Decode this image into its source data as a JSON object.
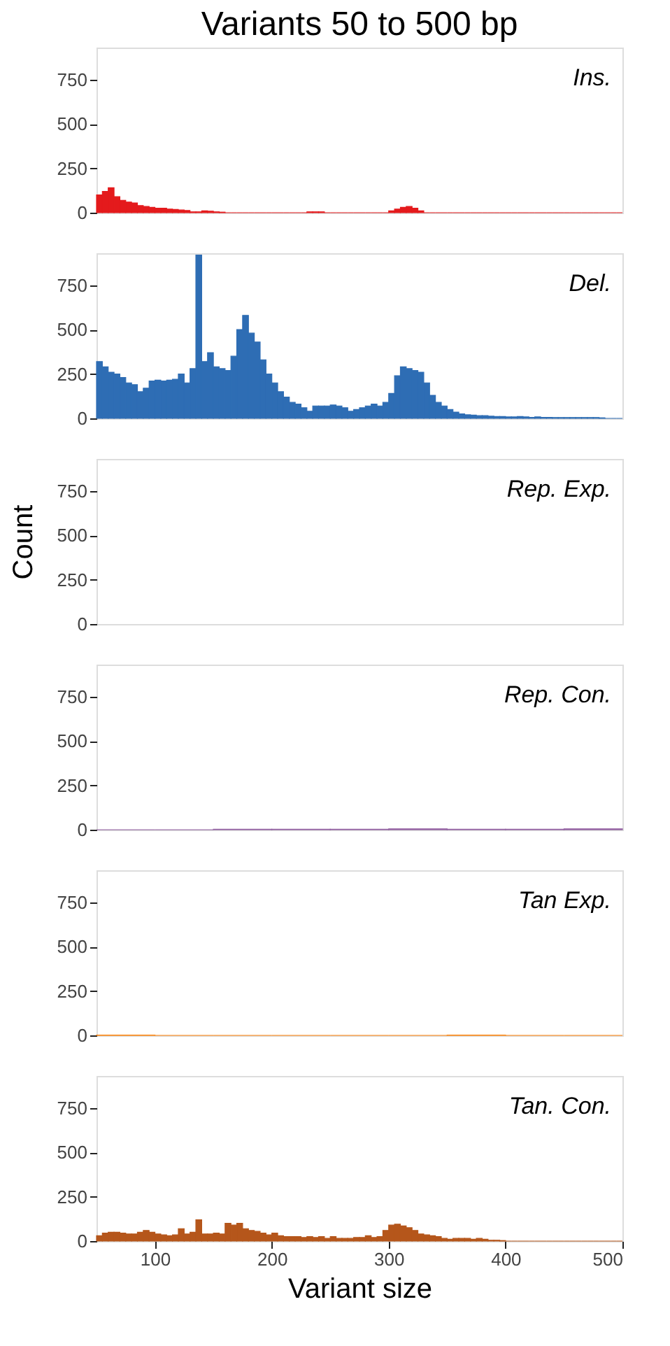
{
  "chart_data": [
    {
      "type": "histogram",
      "title": "Variants 50 to 500 bp",
      "annotations": [
        "Ins."
      ],
      "xlim": [
        50,
        500
      ],
      "ylim": [
        0,
        930
      ],
      "yticks": [
        0,
        250,
        500,
        750
      ],
      "tick_labels": "y",
      "grid": false,
      "color": "#e41a1c",
      "bins": [
        50,
        55,
        60,
        65,
        70,
        75,
        80,
        85,
        90,
        95,
        100,
        105,
        110,
        115,
        120,
        125,
        130,
        135,
        140,
        145,
        150,
        155,
        160,
        165,
        170,
        175,
        180,
        185,
        190,
        195,
        200,
        205,
        210,
        215,
        220,
        225,
        230,
        235,
        240,
        245,
        250,
        255,
        260,
        265,
        270,
        275,
        280,
        285,
        290,
        295,
        300,
        305,
        310,
        315,
        320,
        325,
        330,
        335,
        340,
        345,
        350,
        355,
        360,
        365,
        370,
        375,
        380,
        385,
        390,
        395,
        400,
        405,
        410,
        415,
        420,
        425,
        430,
        435,
        440,
        445,
        450,
        455,
        460,
        465,
        470,
        475,
        480,
        485,
        490,
        495,
        500
      ],
      "values": [
        100,
        120,
        140,
        90,
        70,
        60,
        55,
        40,
        35,
        30,
        25,
        25,
        20,
        18,
        15,
        12,
        5,
        5,
        10,
        8,
        5,
        3,
        0,
        0,
        0,
        0,
        0,
        0,
        0,
        0,
        0,
        0,
        0,
        0,
        0,
        0,
        5,
        5,
        5,
        0,
        0,
        0,
        0,
        0,
        0,
        0,
        0,
        0,
        0,
        0,
        10,
        20,
        30,
        35,
        25,
        10,
        0,
        0,
        0,
        0,
        0,
        0,
        0,
        0,
        0,
        0,
        0,
        0,
        0,
        0,
        0,
        0,
        0,
        0,
        0,
        0,
        0,
        0,
        0,
        0,
        0,
        0,
        0,
        0,
        0,
        0,
        0,
        0,
        0,
        0
      ]
    },
    {
      "type": "histogram",
      "annotations": [
        "Del."
      ],
      "xlim": [
        50,
        500
      ],
      "ylim": [
        0,
        930
      ],
      "yticks": [
        0,
        250,
        500,
        750
      ],
      "tick_labels": "y",
      "grid": false,
      "color": "#2e6db4",
      "bins": [
        50,
        55,
        60,
        65,
        70,
        75,
        80,
        85,
        90,
        95,
        100,
        105,
        110,
        115,
        120,
        125,
        130,
        135,
        140,
        145,
        150,
        155,
        160,
        165,
        170,
        175,
        180,
        185,
        190,
        195,
        200,
        205,
        210,
        215,
        220,
        225,
        230,
        235,
        240,
        245,
        250,
        255,
        260,
        265,
        270,
        275,
        280,
        285,
        290,
        295,
        300,
        305,
        310,
        315,
        320,
        325,
        330,
        335,
        340,
        345,
        350,
        355,
        360,
        365,
        370,
        375,
        380,
        385,
        390,
        395,
        400,
        405,
        410,
        415,
        420,
        425,
        430,
        435,
        440,
        445,
        450,
        455,
        460,
        465,
        470,
        475,
        480,
        485,
        490,
        495,
        500
      ],
      "values": [
        320,
        290,
        260,
        250,
        230,
        200,
        190,
        150,
        170,
        210,
        215,
        210,
        215,
        220,
        250,
        200,
        280,
        920,
        320,
        370,
        290,
        280,
        270,
        350,
        500,
        580,
        480,
        430,
        330,
        250,
        200,
        150,
        120,
        90,
        80,
        60,
        40,
        70,
        70,
        70,
        75,
        70,
        60,
        40,
        50,
        60,
        70,
        80,
        70,
        90,
        140,
        240,
        290,
        280,
        270,
        260,
        200,
        130,
        90,
        70,
        50,
        35,
        25,
        20,
        18,
        15,
        15,
        12,
        10,
        10,
        8,
        8,
        10,
        8,
        6,
        8,
        6,
        6,
        5,
        5,
        5,
        5,
        5,
        5,
        5,
        5,
        3,
        0,
        0,
        0
      ]
    },
    {
      "type": "histogram",
      "annotations": [
        "Rep. Exp."
      ],
      "ylabel": "Count",
      "xlim": [
        50,
        500
      ],
      "ylim": [
        0,
        930
      ],
      "yticks": [
        0,
        250,
        500,
        750
      ],
      "tick_labels": "y",
      "grid": false
    },
    {
      "type": "histogram",
      "annotations": [
        "Rep. Con."
      ],
      "xlim": [
        50,
        500
      ],
      "ylim": [
        0,
        930
      ],
      "yticks": [
        0,
        250,
        500,
        750
      ],
      "tick_labels": "y",
      "grid": false,
      "color": "#8e5a9e",
      "bins": [
        50,
        100,
        150,
        200,
        250,
        300,
        350,
        400,
        450,
        500
      ],
      "values": [
        0,
        0,
        3,
        3,
        3,
        5,
        3,
        3,
        5
      ]
    },
    {
      "type": "histogram",
      "annotations": [
        "Tan Exp."
      ],
      "xlim": [
        50,
        500
      ],
      "ylim": [
        0,
        930
      ],
      "yticks": [
        0,
        250,
        500,
        750
      ],
      "tick_labels": "y",
      "grid": false,
      "color": "#ff7f00",
      "bins": [
        50,
        100,
        150,
        200,
        250,
        300,
        350,
        400,
        450,
        500
      ],
      "values": [
        2,
        0,
        0,
        0,
        0,
        0,
        2,
        0,
        0
      ]
    },
    {
      "type": "histogram",
      "annotations": [
        "Tan. Con."
      ],
      "xlabel": "Variant size",
      "xlim": [
        50,
        500
      ],
      "xticks": [
        100,
        200,
        300,
        400,
        500
      ],
      "ylim": [
        0,
        930
      ],
      "yticks": [
        0,
        250,
        500,
        750
      ],
      "grid": false,
      "color": "#b5561b",
      "bins": [
        50,
        55,
        60,
        65,
        70,
        75,
        80,
        85,
        90,
        95,
        100,
        105,
        110,
        115,
        120,
        125,
        130,
        135,
        140,
        145,
        150,
        155,
        160,
        165,
        170,
        175,
        180,
        185,
        190,
        195,
        200,
        205,
        210,
        215,
        220,
        225,
        230,
        235,
        240,
        245,
        250,
        255,
        260,
        265,
        270,
        275,
        280,
        285,
        290,
        295,
        300,
        305,
        310,
        315,
        320,
        325,
        330,
        335,
        340,
        345,
        350,
        355,
        360,
        365,
        370,
        375,
        380,
        385,
        390,
        395,
        400,
        405,
        410,
        415,
        420,
        425,
        430,
        435,
        440,
        445,
        450,
        455,
        460,
        465,
        470,
        475,
        480,
        485,
        490,
        495,
        500
      ],
      "values": [
        30,
        45,
        50,
        50,
        45,
        40,
        40,
        50,
        60,
        50,
        40,
        35,
        30,
        35,
        70,
        40,
        50,
        120,
        40,
        40,
        45,
        40,
        100,
        90,
        100,
        70,
        60,
        55,
        45,
        35,
        45,
        30,
        25,
        25,
        25,
        20,
        25,
        20,
        25,
        15,
        25,
        15,
        15,
        15,
        20,
        20,
        30,
        20,
        25,
        60,
        90,
        95,
        85,
        75,
        60,
        40,
        35,
        30,
        25,
        15,
        10,
        15,
        15,
        15,
        10,
        15,
        10,
        5,
        5,
        3,
        0,
        0,
        0,
        0,
        0,
        0,
        0,
        0,
        0,
        0,
        0,
        0,
        0,
        0,
        0,
        0,
        0,
        0,
        0,
        0
      ]
    }
  ]
}
